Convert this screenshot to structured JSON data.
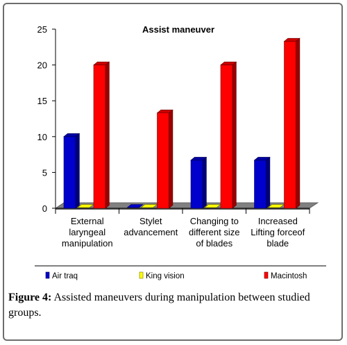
{
  "chart_data": {
    "type": "bar",
    "title": "Assist  maneuver",
    "categories": [
      [
        "External",
        "laryngeal",
        "manipulation"
      ],
      [
        "Stylet",
        "advancement"
      ],
      [
        "Changing to",
        "different size",
        "of blades"
      ],
      [
        "Increased",
        "Lifting forceof",
        "blade"
      ]
    ],
    "series": [
      {
        "name": "Air traq",
        "values": [
          10,
          0,
          6.7,
          6.7
        ],
        "color": "#0000cc"
      },
      {
        "name": "King vision",
        "values": [
          0,
          0,
          0,
          0
        ],
        "color": "#ffff00"
      },
      {
        "name": "Macintosh",
        "values": [
          20,
          13.3,
          20,
          23.3
        ],
        "color": "#ff0000"
      }
    ],
    "ylim": [
      0,
      25
    ],
    "yticks": [
      "0",
      "5",
      "10",
      "15",
      "20",
      "25"
    ],
    "legend_position": "bottom",
    "grid": false,
    "floor_color": "#808080"
  },
  "caption": {
    "label": "Figure 4:",
    "text": " Assisted maneuvers during manipulation between studied groups."
  }
}
